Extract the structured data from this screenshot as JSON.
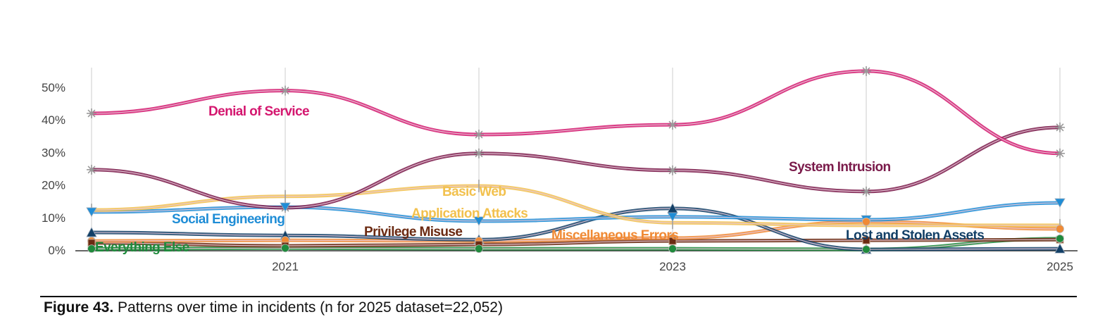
{
  "chart_data": {
    "type": "line",
    "title": "",
    "xlabel": "",
    "ylabel": "",
    "x": [
      2020,
      2021,
      2022,
      2023,
      2024,
      2025
    ],
    "x_tick_labels": [
      "2021",
      "2023",
      "2025"
    ],
    "x_tick_values": [
      2021,
      2023,
      2025
    ],
    "y_tick_labels": [
      "0%",
      "10%",
      "20%",
      "30%",
      "40%",
      "50%"
    ],
    "y_tick_values": [
      0,
      10,
      20,
      30,
      40,
      50
    ],
    "ylim": [
      0,
      50
    ],
    "xlim": [
      2020,
      2025
    ],
    "grid": "vertical",
    "legend": "inline labels",
    "series": [
      {
        "name": "Denial of Service",
        "label": "Denial of Service",
        "color": "#d4176f",
        "marker": "asterisk",
        "values": [
          42,
          49,
          35.5,
          38.5,
          55,
          29.7
        ]
      },
      {
        "name": "System Intrusion",
        "label": "System Intrusion",
        "color": "#7a1a4a",
        "marker": "asterisk",
        "values": [
          24.7,
          13,
          29.7,
          24.5,
          18,
          37.7
        ]
      },
      {
        "name": "Basic Web Application Attacks",
        "label_lines": [
          "Basic Web",
          "Application Attacks"
        ],
        "color": "#f2c14e",
        "marker": "cross",
        "values": [
          12.3,
          16.5,
          19.7,
          8.4,
          7.6,
          7.6
        ]
      },
      {
        "name": "Social Engineering",
        "label": "Social Engineering",
        "color": "#1f8dd6",
        "marker": "triangle-down",
        "values": [
          11.7,
          13.2,
          8.9,
          10.2,
          9.3,
          14.5
        ]
      },
      {
        "name": "Lost and Stolen Assets",
        "label": "Lost and Stolen Assets",
        "color": "#123f66",
        "marker": "triangle-up",
        "values": [
          5.4,
          4.5,
          3.2,
          12.8,
          0.2,
          0.4
        ]
      },
      {
        "name": "Miscellaneous Errors",
        "label": "Miscellaneous Errors",
        "color": "#f08a35",
        "marker": "circle",
        "values": [
          2.8,
          3.0,
          2.8,
          3.7,
          8.7,
          6.5
        ]
      },
      {
        "name": "Privilege Misuse",
        "label": "Privilege Misuse",
        "color": "#6b2a12",
        "marker": "square",
        "values": [
          2.2,
          1.3,
          1.7,
          2.8,
          3.0,
          3.2
        ]
      },
      {
        "name": "Everything Else",
        "label": "Everything Else",
        "color": "#1f8a3c",
        "marker": "circle",
        "values": [
          0.4,
          0.6,
          0.4,
          0.4,
          0.2,
          3.5
        ]
      }
    ]
  },
  "caption": {
    "figure_number": "Figure 43.",
    "text": " Patterns over time in incidents (n for 2025 dataset=22,052)"
  }
}
